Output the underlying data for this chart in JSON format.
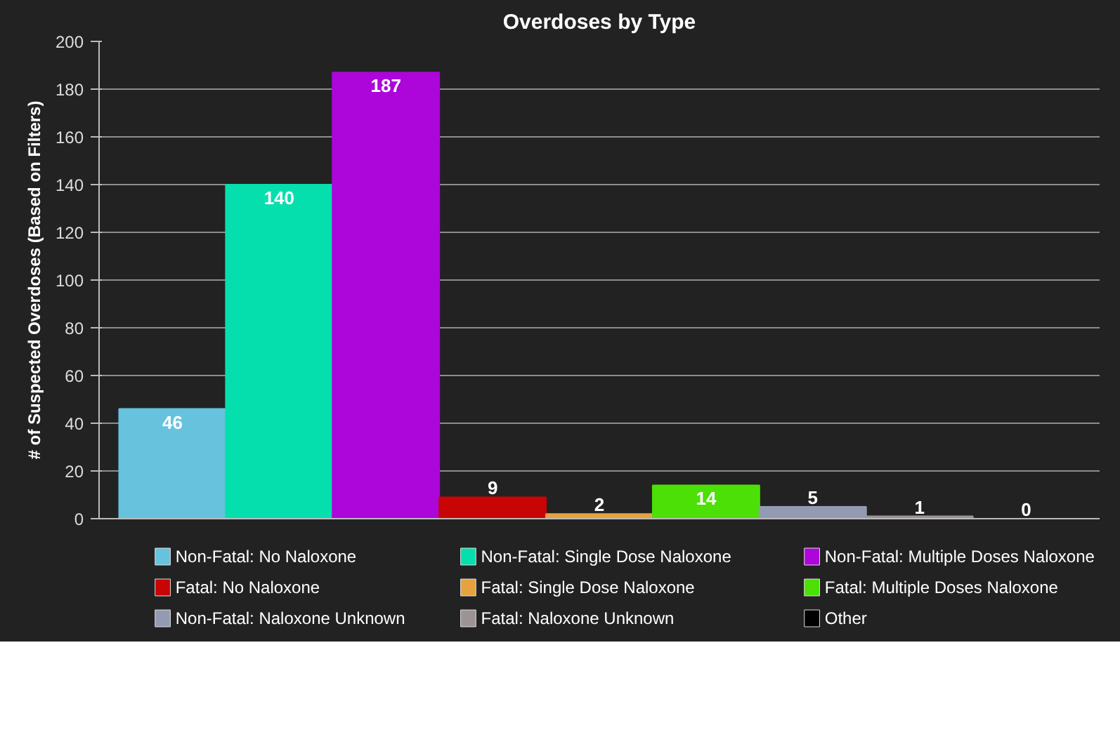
{
  "chart_data": {
    "type": "bar",
    "title": "Overdoses by Type",
    "ylabel": "# of Suspected Overdoses (Based on Filters)",
    "categories": [
      null
    ],
    "series": [
      {
        "name": "Non-Fatal: No Naloxone",
        "color": "#67c2de",
        "values": [
          46
        ]
      },
      {
        "name": "Non-Fatal: Single Dose Naloxone",
        "color": "#05dfae",
        "values": [
          140
        ]
      },
      {
        "name": "Non-Fatal: Multiple Doses Naloxone",
        "color": "#ac06db",
        "values": [
          187
        ]
      },
      {
        "name": "Fatal: No Naloxone",
        "color": "#c80404",
        "values": [
          9
        ]
      },
      {
        "name": "Fatal: Single Dose Naloxone",
        "color": "#e6a33c",
        "values": [
          2
        ]
      },
      {
        "name": "Fatal: Multiple Doses Naloxone",
        "color": "#4ce006",
        "values": [
          14
        ]
      },
      {
        "name": "Non-Fatal: Naloxone Unknown",
        "color": "#939bb3",
        "values": [
          5
        ]
      },
      {
        "name": "Fatal: Naloxone Unknown",
        "color": "#9c9393",
        "values": [
          1
        ]
      },
      {
        "name": "Other",
        "color": "#000000",
        "values": [
          0
        ]
      }
    ],
    "ylim": [
      0,
      200
    ],
    "yticks": [
      0,
      20,
      40,
      60,
      80,
      100,
      120,
      140,
      160,
      180,
      200
    ],
    "grid": "y",
    "legend": "bottom",
    "data_labels": true,
    "tick_labels": "y"
  }
}
